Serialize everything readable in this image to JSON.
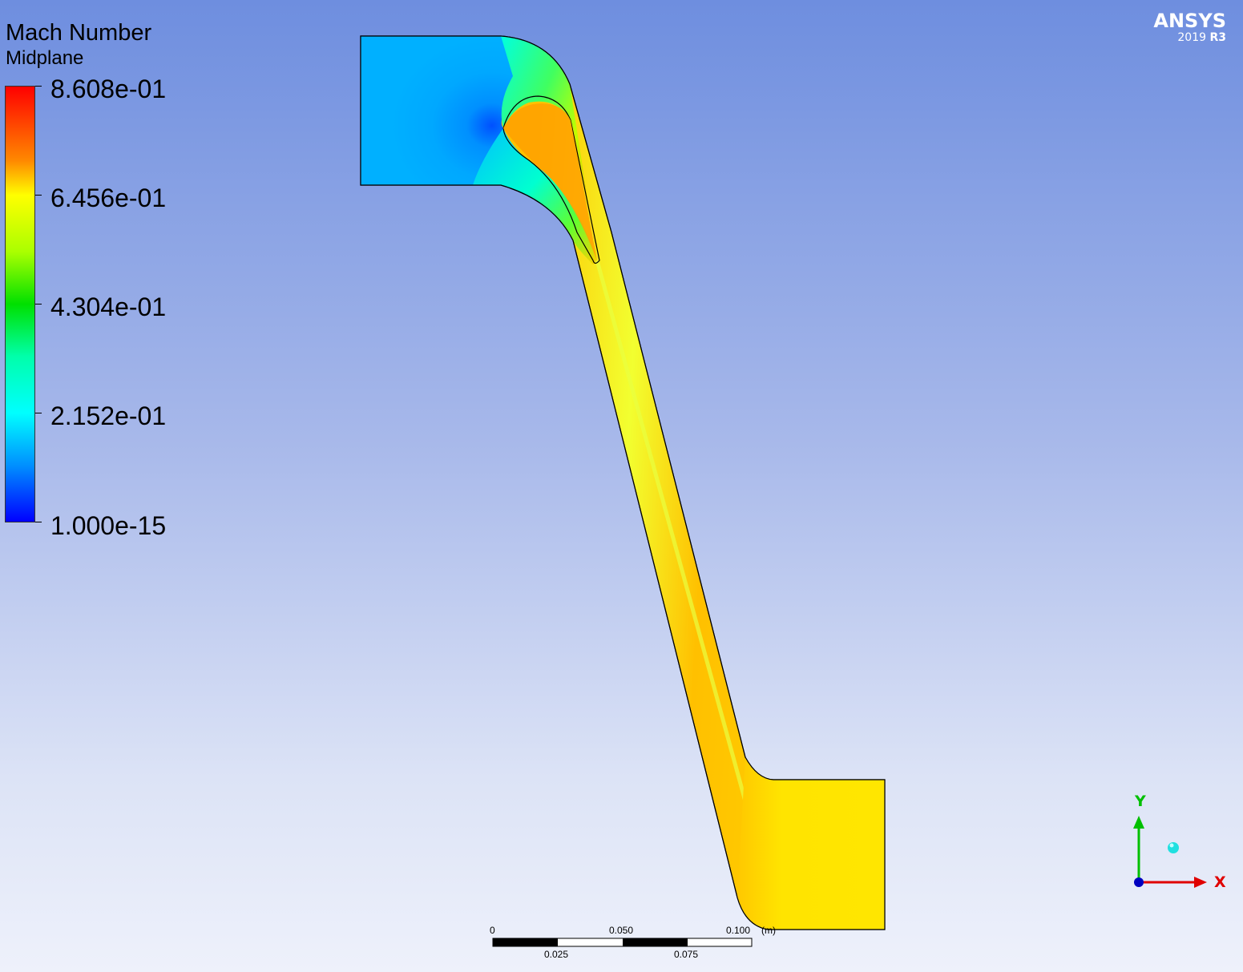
{
  "legend": {
    "variable": "Mach Number",
    "location": "Midplane",
    "values": [
      "8.608e-01",
      "6.456e-01",
      "4.304e-01",
      "2.152e-01",
      "1.000e-15"
    ],
    "max": 0.8608,
    "min": 1e-15,
    "colors": [
      "#ff0000",
      "#ffa000",
      "#ffff00",
      "#00e000",
      "#00ffff",
      "#0080ff",
      "#0000ff"
    ]
  },
  "logo": {
    "brand": "ANSYS",
    "year": "2019",
    "release": "R3"
  },
  "scale_bar": {
    "top_labels": [
      "0",
      "0.050",
      "0.100"
    ],
    "bottom_labels": [
      "0.025",
      "0.075"
    ],
    "unit": "(m)"
  },
  "triad": {
    "y_label": "Y",
    "x_label": "X",
    "y_color": "#00c000",
    "x_color": "#e00000",
    "z_color": "#00e0e0"
  },
  "field_colors": {
    "inlet": "#00aaff",
    "outlet": "#ffe000",
    "passage": "#ffc000"
  }
}
